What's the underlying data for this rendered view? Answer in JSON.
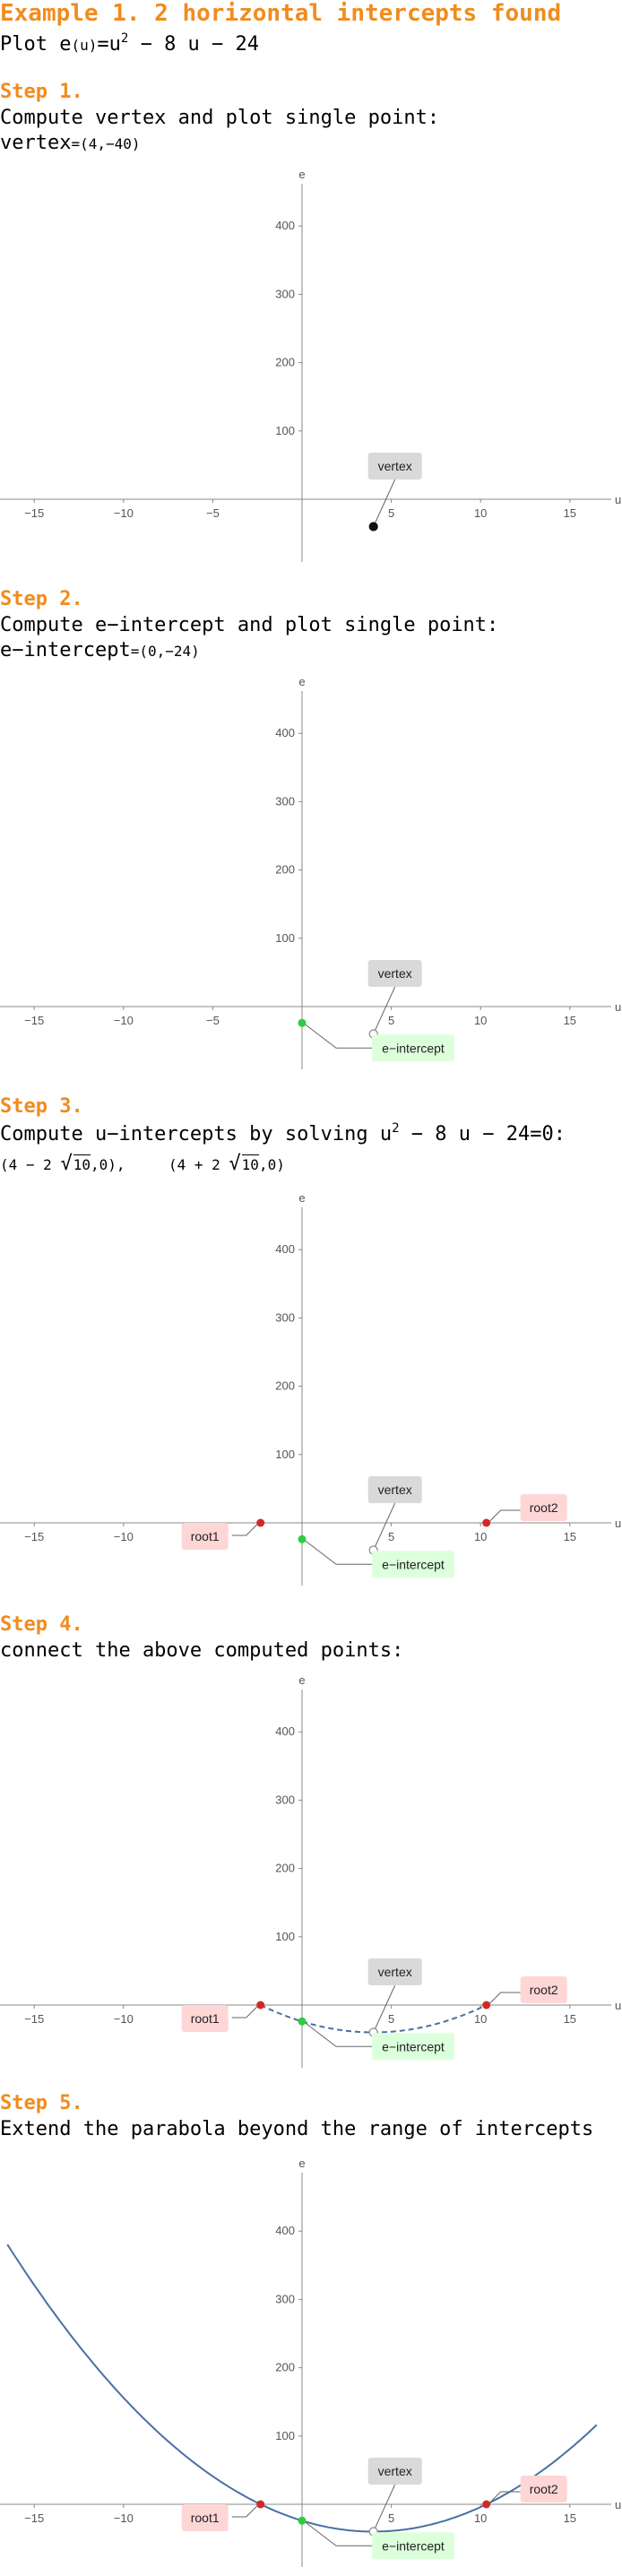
{
  "header": {
    "title": "Example 1. 2 horizontal intercepts found",
    "plot_prefix": "Plot e",
    "plot_arg": "(u)",
    "plot_eq": "=u",
    "plot_exp": "2",
    "plot_rest": " − 8 u − 24"
  },
  "steps": [
    {
      "label": "Step 1.",
      "line1": "Compute vertex and plot single point:",
      "line2_a": "vertex",
      "line2_b": "=(4,−40)"
    },
    {
      "label": "Step 2.",
      "line1": "Compute e−intercept and plot single point:",
      "line2_a": "e−intercept",
      "line2_b": "=(0,−24)"
    },
    {
      "label": "Step 3.",
      "line1_a": "Compute u−intercepts by solving u",
      "line1_exp": "2",
      "line1_b": " − 8 u − 24=0:",
      "root_a_pre": "(4 − 2 ",
      "root_a_rad": "10",
      "root_a_post": ",0),",
      "root_b_pre": "(4 + 2 ",
      "root_b_rad": "10",
      "root_b_post": ",0)"
    },
    {
      "label": "Step 4.",
      "line1": "connect the above computed points:"
    },
    {
      "label": "Step 5.",
      "line1": "Extend the parabola beyond the range of intercepts"
    }
  ],
  "chart_data": {
    "type": "line",
    "xlabel": "u",
    "ylabel": "e",
    "xlim": [
      -17,
      17
    ],
    "ylim": [
      -80,
      460
    ],
    "xticks": [
      -15,
      -10,
      -5,
      5,
      10,
      15
    ],
    "xtick_labels": [
      "−15",
      "−10",
      "−5",
      "5",
      "10",
      "15"
    ],
    "yticks": [
      100,
      200,
      300,
      400
    ],
    "ytick_labels": [
      "100",
      "200",
      "300",
      "400"
    ],
    "function": "e(u)=u^2-8u-24",
    "points": {
      "vertex": {
        "u": 4,
        "e": -40,
        "label": "vertex"
      },
      "e_intercept": {
        "u": 0,
        "e": -24,
        "label": "e−intercept"
      },
      "root1": {
        "u": -2.325,
        "e": 0,
        "label": "root1"
      },
      "root2": {
        "u": 10.325,
        "e": 0,
        "label": "root2"
      }
    },
    "colors": {
      "step_title": "#f08c1e",
      "curve": "#4a6fa5",
      "vertex_box": "#d9d9d9",
      "intercept_box": "#dcffdc",
      "root_box": "#ffd6d6",
      "root_point": "#d62728",
      "intercept_point": "#2ecc40"
    },
    "panels": [
      {
        "step": 1,
        "show": [
          "vertex"
        ],
        "curve": "none"
      },
      {
        "step": 2,
        "show": [
          "vertex",
          "e_intercept"
        ],
        "curve": "none"
      },
      {
        "step": 3,
        "show": [
          "vertex",
          "e_intercept",
          "root1",
          "root2"
        ],
        "curve": "none"
      },
      {
        "step": 4,
        "show": [
          "vertex",
          "e_intercept",
          "root1",
          "root2"
        ],
        "curve": "dashed",
        "range": [
          -2.325,
          10.325
        ]
      },
      {
        "step": 5,
        "show": [
          "vertex",
          "e_intercept",
          "root1",
          "root2"
        ],
        "curve": "solid",
        "range": [
          -16.5,
          16.5
        ]
      }
    ]
  }
}
